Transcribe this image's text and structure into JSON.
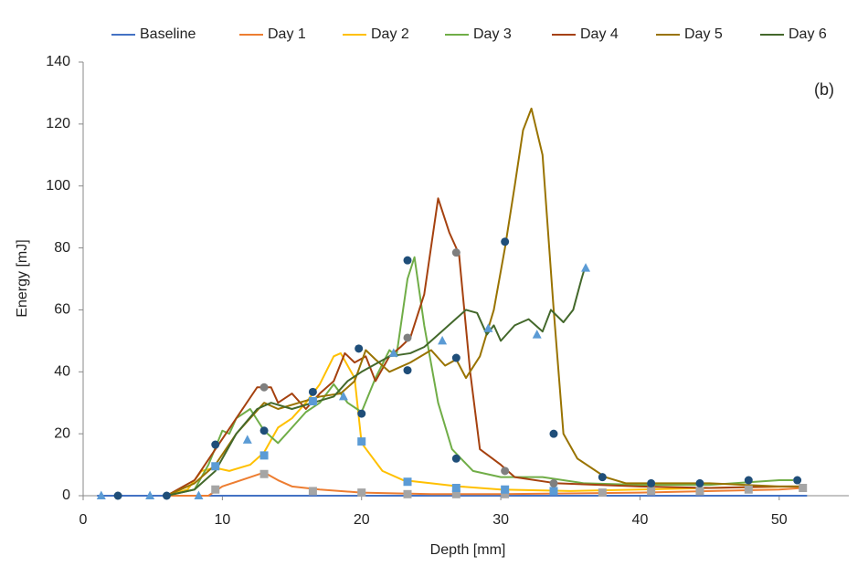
{
  "chart_data": {
    "type": "line",
    "xlabel": "Depth [mm]",
    "ylabel": "Energy [mJ]",
    "annotation": "(b)",
    "xlim": [
      0,
      55
    ],
    "ylim": [
      0,
      140
    ],
    "xticks": [
      0,
      10,
      20,
      30,
      40,
      50
    ],
    "yticks": [
      0,
      20,
      40,
      60,
      80,
      100,
      120,
      140
    ],
    "grid": false,
    "legend": "top",
    "series": [
      {
        "name": "Baseline",
        "color": "#4472c4",
        "x": [
          1,
          52
        ],
        "values": [
          0,
          0
        ],
        "markers": {
          "shape": "triangle",
          "color": "#5b9bd5",
          "x": [
            1.3,
            4.8,
            8.3
          ],
          "y": [
            0,
            0,
            0
          ]
        }
      },
      {
        "name": "Day 1",
        "color": "#ed7d31",
        "x": [
          6,
          9,
          10,
          12,
          13,
          14,
          15,
          17,
          20,
          25,
          30,
          40,
          50,
          51.7
        ],
        "values": [
          0,
          0,
          3,
          6,
          7.5,
          5,
          3,
          2,
          1,
          0.5,
          0.5,
          1,
          2,
          2.5
        ],
        "markers": {
          "shape": "square",
          "color": "#a5a5a5",
          "x": [
            9.5,
            13,
            16.5,
            20,
            23.3,
            26.8,
            30.3,
            37.3,
            40.8,
            44.3,
            47.8,
            51.7
          ],
          "y": [
            2,
            7,
            1.5,
            1,
            0.5,
            0.5,
            0.5,
            1,
            1.5,
            1.5,
            2,
            2.5
          ]
        }
      },
      {
        "name": "Day 2",
        "color": "#ffc000",
        "x": [
          6,
          7.5,
          8.5,
          9.5,
          10.5,
          12,
          13,
          14,
          15,
          16,
          17,
          18,
          18.5,
          19.5,
          20,
          21.5,
          23,
          25,
          27,
          30,
          35,
          40,
          45,
          51
        ],
        "values": [
          0,
          2,
          8,
          9,
          8,
          10,
          14,
          22,
          25,
          30,
          36,
          45,
          46,
          38,
          17,
          8,
          5,
          4,
          3,
          2,
          1.5,
          2,
          2.5,
          3
        ],
        "markers": {
          "shape": "square",
          "color": "#5b9bd5",
          "x": [
            9.5,
            13,
            16.5,
            20,
            23.3,
            26.8,
            30.3,
            33.8
          ],
          "y": [
            9.5,
            13,
            30.5,
            17.5,
            4.5,
            2.5,
            2,
            1.5
          ]
        }
      },
      {
        "name": "Day 3",
        "color": "#70ad47",
        "x": [
          6,
          8,
          9,
          10,
          10.5,
          11,
          12,
          13,
          14,
          15,
          16,
          17,
          18,
          19,
          20,
          21,
          22,
          22.5,
          23.3,
          23.8,
          24.5,
          25.5,
          26.5,
          28,
          30,
          33,
          36,
          40,
          45,
          50,
          51
        ],
        "values": [
          0,
          2,
          10,
          21,
          20,
          25,
          28,
          21,
          17,
          22,
          27,
          30,
          36,
          30,
          27,
          38,
          47,
          45,
          70,
          77,
          55,
          30,
          15,
          8,
          6,
          6,
          4,
          3.5,
          3.5,
          5,
          5
        ],
        "markers": {
          "shape": "circle",
          "color": "#1f4e79",
          "x": [
            9.5,
            13,
            16.5,
            20,
            23.3,
            26.8
          ],
          "y": [
            16.5,
            21,
            33.5,
            26.5,
            76,
            12
          ]
        }
      },
      {
        "name": "Day 4",
        "color": "#a5410f",
        "x": [
          6,
          8,
          9.5,
          11,
          12.5,
          13.5,
          14,
          15,
          16,
          17,
          18,
          18.8,
          19.5,
          20.3,
          21,
          22,
          22.8,
          23.5,
          24.5,
          25.5,
          26.3,
          27,
          27.8,
          28.5,
          30,
          31,
          34,
          40,
          45,
          50,
          51.5
        ],
        "values": [
          0,
          5,
          15,
          25,
          35,
          35,
          30,
          33,
          28,
          33,
          37,
          46,
          43,
          45,
          37,
          45,
          48,
          51,
          65,
          96,
          85,
          78,
          40,
          15,
          10,
          6,
          4,
          3,
          2.5,
          3,
          3
        ],
        "markers": {
          "shape": "circle",
          "color": "#7f7f7f",
          "x": [
            13,
            23.3,
            26.8,
            30.3,
            33.8
          ],
          "y": [
            35,
            51,
            78.5,
            8,
            4
          ]
        }
      },
      {
        "name": "Day 5",
        "color": "#997300",
        "x": [
          6,
          8,
          9.5,
          11,
          13,
          14,
          15.5,
          17,
          18.5,
          19.5,
          20.3,
          21,
          22,
          23.5,
          25,
          26,
          26.8,
          27.5,
          28.5,
          29.5,
          30.3,
          31,
          31.6,
          32.2,
          33,
          33.8,
          34.5,
          35.5,
          37.5,
          39,
          45,
          50,
          51.5
        ],
        "values": [
          0,
          4,
          10,
          20,
          30,
          28,
          30,
          32,
          33,
          37,
          47,
          44,
          40,
          43,
          47,
          42,
          44,
          38,
          45,
          60,
          80,
          100,
          118,
          125,
          110,
          60,
          20,
          12,
          6,
          4,
          4,
          3,
          3
        ],
        "markers": {
          "shape": "circle",
          "color": "#1f4e79",
          "x": [
            2.5,
            6,
            19.8,
            23.3,
            26.8,
            30.3,
            33.8,
            37.3,
            40.8,
            44.3,
            47.8,
            51.3
          ],
          "y": [
            0,
            0,
            47.5,
            40.5,
            44.5,
            82,
            20,
            6,
            4,
            4,
            5,
            5
          ]
        }
      },
      {
        "name": "Day 6",
        "color": "#43682b",
        "x": [
          6,
          8,
          9.5,
          11,
          12.5,
          13.5,
          15,
          16.5,
          18,
          19,
          20,
          22,
          23.5,
          24.5,
          25.5,
          26.5,
          27.5,
          28.3,
          29,
          29.5,
          30,
          31,
          32,
          33,
          33.6,
          34.5,
          35.2,
          35.8,
          36
        ],
        "values": [
          0,
          2,
          8,
          20,
          28,
          30,
          28,
          30,
          32,
          37,
          40,
          45,
          46,
          48,
          52,
          56,
          60,
          59,
          52,
          55,
          50,
          55,
          57,
          53,
          60,
          56,
          60,
          70,
          73
        ],
        "markers": {
          "shape": "triangle",
          "color": "#5b9bd5",
          "x": [
            11.8,
            18.7,
            22.3,
            25.8,
            29.1,
            32.6,
            36.1
          ],
          "y": [
            18,
            32,
            46,
            50,
            54,
            52,
            73.5
          ]
        }
      }
    ]
  }
}
